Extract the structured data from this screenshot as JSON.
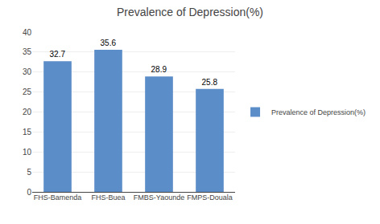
{
  "chart_data": {
    "type": "bar",
    "title": "Prevalence of Depression(%)",
    "categories": [
      "FHS-Bamenda",
      "FHS-Buea",
      "FMBS-Yaounde",
      "FMPS-Douala"
    ],
    "series": [
      {
        "name": "Prevalence of Depression(%)",
        "color": "#5B8DC8",
        "values": [
          32.7,
          35.6,
          28.9,
          25.8
        ]
      }
    ],
    "ylim": [
      0,
      40
    ],
    "yticks": [
      0,
      5,
      10,
      15,
      20,
      25,
      30,
      35,
      40
    ],
    "grid": true,
    "legend": "right",
    "data_labels": true
  }
}
